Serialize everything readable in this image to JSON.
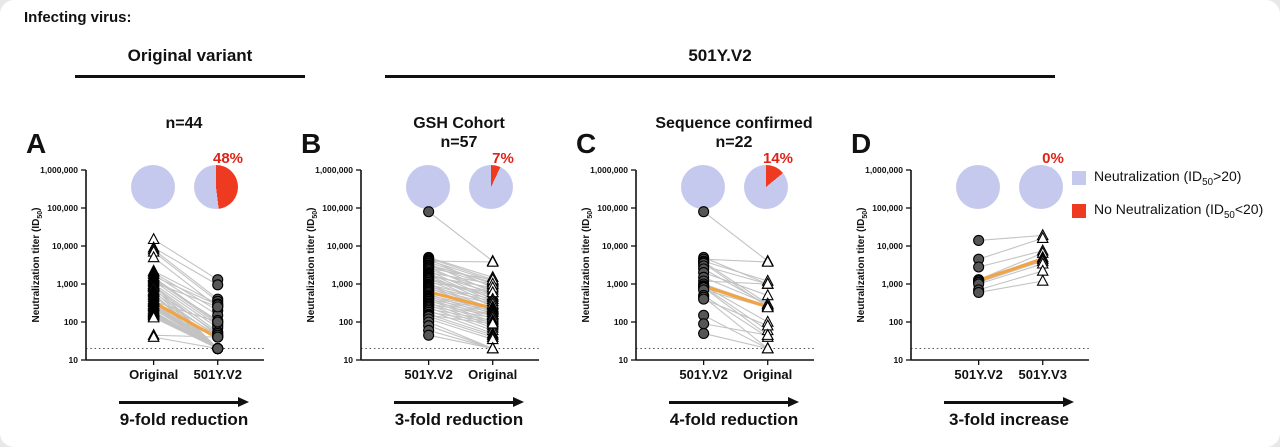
{
  "header": {
    "infecting_virus_label": "Infecting virus:",
    "groups": [
      {
        "label": "Original variant"
      },
      {
        "label": "501Y.V2"
      }
    ]
  },
  "y_axis": {
    "label_prefix": "Neutralization titer (ID",
    "label_sub": "50",
    "label_suffix": ")",
    "scale": "log",
    "ylim": [
      10,
      1000000
    ],
    "tick_values": [
      10,
      100,
      1000,
      10000,
      100000,
      1000000
    ],
    "tick_labels": [
      "10",
      "100",
      "1,000",
      "10,000",
      "100,000",
      "1,000,000"
    ],
    "threshold": 20
  },
  "legend": {
    "items": [
      {
        "color": "#c6c9ee",
        "prefix": "Neutralization (ID",
        "sub": "50",
        "suffix": ">20)"
      },
      {
        "color": "#ee3a20",
        "prefix": "No Neutralization (ID",
        "sub": "50",
        "suffix": "<20)"
      }
    ]
  },
  "colors": {
    "lavender": "#c6c9ee",
    "red": "#ee3a20",
    "percent_text": "#e02317",
    "orange": "#f0a445",
    "pair_line": "#c3c3c3",
    "marker_fill": "#565656",
    "axis": "#111111"
  },
  "chart_data": [
    {
      "type": "paired-line",
      "letter": "A",
      "title_line1": "",
      "title_line2": "n=44",
      "percent_label": "48%",
      "pies_no_neutralization_pct": [
        0,
        48
      ],
      "x_labels": [
        "Original",
        "501Y.V2"
      ],
      "markers": [
        "triangle",
        "circle"
      ],
      "arrow_label": "9-fold reduction",
      "median": [
        330,
        38
      ],
      "pairs": [
        [
          15000,
          1300
        ],
        [
          9000,
          950
        ],
        [
          8000,
          400
        ],
        [
          7000,
          350
        ],
        [
          5000,
          250
        ],
        [
          2200,
          300
        ],
        [
          2000,
          200
        ],
        [
          1800,
          150
        ],
        [
          1600,
          280
        ],
        [
          1500,
          100
        ],
        [
          1400,
          90
        ],
        [
          1300,
          110
        ],
        [
          1200,
          80
        ],
        [
          1100,
          250
        ],
        [
          1000,
          70
        ],
        [
          950,
          20
        ],
        [
          900,
          55
        ],
        [
          850,
          45
        ],
        [
          800,
          20
        ],
        [
          700,
          50
        ],
        [
          650,
          20
        ],
        [
          600,
          40
        ],
        [
          550,
          20
        ],
        [
          500,
          20
        ],
        [
          450,
          45
        ],
        [
          400,
          20
        ],
        [
          380,
          20
        ],
        [
          350,
          100
        ],
        [
          330,
          20
        ],
        [
          300,
          20
        ],
        [
          280,
          20
        ],
        [
          260,
          20
        ],
        [
          240,
          20
        ],
        [
          220,
          20
        ],
        [
          200,
          40
        ],
        [
          190,
          20
        ],
        [
          180,
          20
        ],
        [
          170,
          20
        ],
        [
          160,
          20
        ],
        [
          150,
          20
        ],
        [
          140,
          20
        ],
        [
          130,
          20
        ],
        [
          45,
          40
        ],
        [
          40,
          20
        ]
      ]
    },
    {
      "type": "paired-line",
      "letter": "B",
      "title_line1": "GSH Cohort",
      "title_line2": "n=57",
      "percent_label": "7%",
      "pies_no_neutralization_pct": [
        0,
        7
      ],
      "x_labels": [
        "501Y.V2",
        "Original"
      ],
      "markers": [
        "circle",
        "triangle"
      ],
      "arrow_label": "3-fold reduction",
      "median": [
        620,
        230
      ],
      "pairs": [
        [
          80000,
          4000
        ],
        [
          5000,
          1500
        ],
        [
          4800,
          1300
        ],
        [
          4500,
          800
        ],
        [
          4200,
          1200
        ],
        [
          4000,
          3800
        ],
        [
          3800,
          1000
        ],
        [
          3500,
          600
        ],
        [
          3200,
          1100
        ],
        [
          3000,
          900
        ],
        [
          2800,
          500
        ],
        [
          2600,
          1300
        ],
        [
          2400,
          700
        ],
        [
          2200,
          400
        ],
        [
          2000,
          1000
        ],
        [
          1900,
          350
        ],
        [
          1800,
          600
        ],
        [
          1700,
          300
        ],
        [
          1600,
          800
        ],
        [
          1500,
          250
        ],
        [
          1400,
          500
        ],
        [
          1300,
          450
        ],
        [
          1200,
          280
        ],
        [
          1100,
          600
        ],
        [
          1000,
          220
        ],
        [
          950,
          400
        ],
        [
          900,
          200
        ],
        [
          850,
          350
        ],
        [
          800,
          180
        ],
        [
          750,
          300
        ],
        [
          700,
          160
        ],
        [
          650,
          250
        ],
        [
          600,
          230
        ],
        [
          550,
          140
        ],
        [
          500,
          220
        ],
        [
          480,
          120
        ],
        [
          450,
          200
        ],
        [
          420,
          100
        ],
        [
          400,
          180
        ],
        [
          380,
          90
        ],
        [
          350,
          160
        ],
        [
          320,
          80
        ],
        [
          300,
          150
        ],
        [
          280,
          70
        ],
        [
          260,
          130
        ],
        [
          240,
          60
        ],
        [
          220,
          110
        ],
        [
          200,
          50
        ],
        [
          180,
          100
        ],
        [
          160,
          45
        ],
        [
          150,
          90
        ],
        [
          140,
          40
        ],
        [
          120,
          35
        ],
        [
          100,
          20
        ],
        [
          80,
          20
        ],
        [
          60,
          20
        ],
        [
          45,
          20
        ]
      ]
    },
    {
      "type": "paired-line",
      "letter": "C",
      "title_line1": "Sequence confirmed",
      "title_line2": "n=22",
      "percent_label": "14%",
      "pies_no_neutralization_pct": [
        0,
        14
      ],
      "x_labels": [
        "501Y.V2",
        "Original"
      ],
      "markers": [
        "circle",
        "triangle"
      ],
      "arrow_label": "4-fold reduction",
      "median": [
        880,
        250
      ],
      "pairs": [
        [
          80000,
          4000
        ],
        [
          5000,
          1000
        ],
        [
          4500,
          3800
        ],
        [
          4000,
          1200
        ],
        [
          3800,
          300
        ],
        [
          3500,
          250
        ],
        [
          3000,
          1000
        ],
        [
          2500,
          280
        ],
        [
          2000,
          500
        ],
        [
          1500,
          300
        ],
        [
          1200,
          1000
        ],
        [
          1000,
          260
        ],
        [
          900,
          100
        ],
        [
          850,
          60
        ],
        [
          800,
          45
        ],
        [
          700,
          240
        ],
        [
          500,
          40
        ],
        [
          450,
          20
        ],
        [
          400,
          80
        ],
        [
          150,
          20
        ],
        [
          90,
          45
        ],
        [
          50,
          20
        ]
      ]
    },
    {
      "type": "paired-line",
      "letter": "D",
      "title_line1": "",
      "title_line2": "",
      "percent_label": "0%",
      "pies_no_neutralization_pct": [
        0,
        0
      ],
      "x_labels": [
        "501Y.V2",
        "501Y.V3"
      ],
      "markers": [
        "circle",
        "triangle"
      ],
      "arrow_label": "3-fold increase",
      "median": [
        1250,
        4500
      ],
      "pairs": [
        [
          14000,
          19000
        ],
        [
          4500,
          16000
        ],
        [
          2800,
          7500
        ],
        [
          1300,
          6500
        ],
        [
          1250,
          5000
        ],
        [
          1200,
          4500
        ],
        [
          1100,
          4000
        ],
        [
          1000,
          3400
        ],
        [
          700,
          2200
        ],
        [
          600,
          1200
        ]
      ]
    }
  ]
}
